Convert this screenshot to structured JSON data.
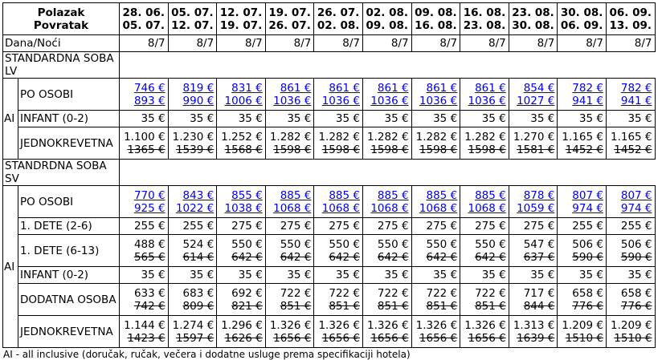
{
  "header": {
    "label_departure": "Polazak",
    "label_return": "Povratak",
    "departures": [
      "28. 06.",
      "05. 07.",
      "12. 07.",
      "19. 07.",
      "26. 07.",
      "02. 08.",
      "09. 08.",
      "16. 08.",
      "23. 08.",
      "30. 08.",
      "06. 09."
    ],
    "returns": [
      "05. 07.",
      "12. 07.",
      "19. 07.",
      "26. 07.",
      "02. 08.",
      "09. 08.",
      "16. 08.",
      "23. 08.",
      "30. 08.",
      "06. 09.",
      "13. 09."
    ]
  },
  "nights": {
    "label": "Dana/Noći",
    "values": [
      "8/7",
      "8/7",
      "8/7",
      "8/7",
      "8/7",
      "8/7",
      "8/7",
      "8/7",
      "8/7",
      "8/7",
      "8/7"
    ]
  },
  "sections": [
    {
      "title": "STANDARDNA SOBA LV",
      "board": "AI",
      "rows": [
        {
          "label": "PO OSOBI",
          "link": true,
          "values": [
            "746 €",
            "819 €",
            "831 €",
            "861 €",
            "861 €",
            "861 €",
            "861 €",
            "861 €",
            "854 €",
            "782 €",
            "782 €"
          ],
          "old": [
            "893 €",
            "990 €",
            "1006 €",
            "1036 €",
            "1036 €",
            "1036 €",
            "1036 €",
            "1036 €",
            "1027 €",
            "941 €",
            "941 €"
          ]
        },
        {
          "label": "INFANT (0-2)",
          "link": false,
          "values": [
            "35 €",
            "35 €",
            "35 €",
            "35 €",
            "35 €",
            "35 €",
            "35 €",
            "35 €",
            "35 €",
            "35 €",
            "35 €"
          ],
          "old": []
        },
        {
          "label": "JEDNOKREVETNA",
          "link": false,
          "values": [
            "1.100 €",
            "1.230 €",
            "1.252 €",
            "1.282 €",
            "1.282 €",
            "1.282 €",
            "1.282 €",
            "1.282 €",
            "1.270 €",
            "1.165 €",
            "1.165 €"
          ],
          "old": [
            "1365 €",
            "1539 €",
            "1568 €",
            "1598 €",
            "1598 €",
            "1598 €",
            "1598 €",
            "1598 €",
            "1581 €",
            "1452 €",
            "1452 €"
          ]
        }
      ]
    },
    {
      "title": "STANDRDNA SOBA SV",
      "board": "AI",
      "rows": [
        {
          "label": "PO OSOBI",
          "link": true,
          "values": [
            "770 €",
            "843 €",
            "855 €",
            "885 €",
            "885 €",
            "885 €",
            "885 €",
            "885 €",
            "878 €",
            "807 €",
            "807 €"
          ],
          "old": [
            "925 €",
            "1022 €",
            "1038 €",
            "1068 €",
            "1068 €",
            "1068 €",
            "1068 €",
            "1068 €",
            "1059 €",
            "974 €",
            "974 €"
          ]
        },
        {
          "label": "1. DETE (2-6)",
          "link": false,
          "values": [
            "255 €",
            "255 €",
            "275 €",
            "275 €",
            "275 €",
            "275 €",
            "275 €",
            "275 €",
            "275 €",
            "255 €",
            "255 €"
          ],
          "old": []
        },
        {
          "label": "1. DETE (6-13)",
          "link": false,
          "values": [
            "488 €",
            "524 €",
            "550 €",
            "550 €",
            "550 €",
            "550 €",
            "550 €",
            "550 €",
            "547 €",
            "506 €",
            "506 €"
          ],
          "old": [
            "565 €",
            "614 €",
            "642 €",
            "642 €",
            "642 €",
            "642 €",
            "642 €",
            "642 €",
            "637 €",
            "590 €",
            "590 €"
          ]
        },
        {
          "label": "INFANT (0-2)",
          "link": false,
          "values": [
            "35 €",
            "35 €",
            "35 €",
            "35 €",
            "35 €",
            "35 €",
            "35 €",
            "35 €",
            "35 €",
            "35 €",
            "35 €"
          ],
          "old": []
        },
        {
          "label": "DODATNA OSOBA",
          "link": false,
          "values": [
            "633 €",
            "683 €",
            "692 €",
            "722 €",
            "722 €",
            "722 €",
            "722 €",
            "722 €",
            "717 €",
            "658 €",
            "658 €"
          ],
          "old": [
            "742 €",
            "809 €",
            "821 €",
            "851 €",
            "851 €",
            "851 €",
            "851 €",
            "851 €",
            "844 €",
            "776 €",
            "776 €"
          ]
        },
        {
          "label": "JEDNOKREVETNA",
          "link": false,
          "values": [
            "1.144 €",
            "1.274 €",
            "1.296 €",
            "1.326 €",
            "1.326 €",
            "1.326 €",
            "1.326 €",
            "1.326 €",
            "1.313 €",
            "1.209 €",
            "1.209 €"
          ],
          "old": [
            "1423 €",
            "1597 €",
            "1626 €",
            "1656 €",
            "1656 €",
            "1656 €",
            "1656 €",
            "1656 €",
            "1639 €",
            "1510 €",
            "1510 €"
          ]
        }
      ]
    }
  ],
  "footnote": "AI - all inclusive (doručak, ručak, večera i dodatne usluge prema specifikaciji hotela)"
}
